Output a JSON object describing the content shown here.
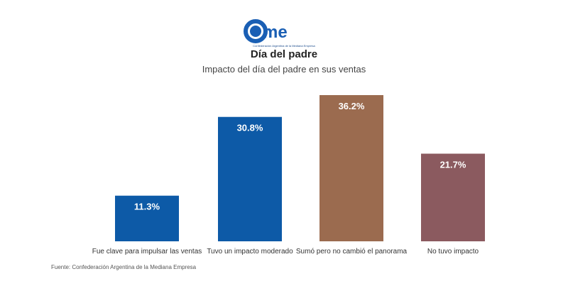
{
  "brand": {
    "logo_text": "Came",
    "logo_tagline": "Confederación Argentina de la Mediana Empresa",
    "logo_color": "#1a5fb4"
  },
  "chart_data": {
    "type": "bar",
    "title": "Día del padre",
    "subtitle": "Impacto del día del padre en sus ventas",
    "categories": [
      "Fue clave para impulsar las ventas",
      "Tuvo un impacto moderado",
      "Sumó pero no cambió el panorama",
      "No tuvo impacto"
    ],
    "values": [
      11.3,
      30.8,
      36.2,
      21.7
    ],
    "data_labels": [
      "11.3%",
      "30.8%",
      "36.2%",
      "21.7%"
    ],
    "colors": [
      "#0d5aa7",
      "#0d5aa7",
      "#9b6b4f",
      "#8b5a5f"
    ],
    "ylim": [
      0,
      36.2
    ],
    "grid": false,
    "legend": "none"
  },
  "source": "Fuente: Confederación Argentina de la Mediana Empresa"
}
